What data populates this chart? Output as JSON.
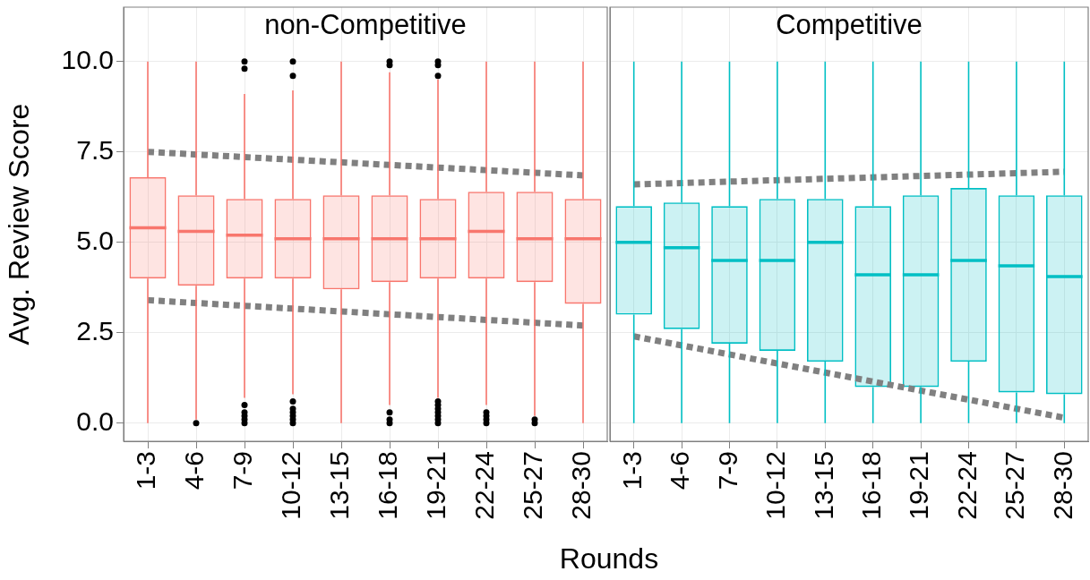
{
  "chart_data": [
    {
      "type": "box",
      "title": "non-Competitive",
      "ylabel": "Avg. Review Score",
      "xlabel": "Rounds",
      "categories": [
        "1-3",
        "4-6",
        "7-9",
        "10-12",
        "13-15",
        "16-18",
        "19-21",
        "22-24",
        "25-27",
        "28-30"
      ],
      "ylim": [
        -0.5,
        11.5
      ],
      "yticks": [
        {
          "value": 0,
          "label": "0.0"
        },
        {
          "value": 2.5,
          "label": "2.5"
        },
        {
          "value": 5,
          "label": "5.0"
        },
        {
          "value": 7.5,
          "label": "7.5"
        },
        {
          "value": 10,
          "label": "10.0"
        }
      ],
      "grid": true,
      "legend": false,
      "series": [
        {
          "type": "box",
          "color": "#f8766d",
          "boxes": [
            {
              "low": 0,
              "q1": 4.0,
              "median": 5.4,
              "q3": 6.8,
              "high": 10
            },
            {
              "low": 0.1,
              "q1": 3.8,
              "median": 5.3,
              "q3": 6.3,
              "high": 10,
              "outliers": [
                0
              ]
            },
            {
              "low": 0.7,
              "q1": 4.0,
              "median": 5.2,
              "q3": 6.2,
              "high": 9.1,
              "outliers": [
                10,
                9.8,
                0.5,
                0.3,
                0.2,
                0.1,
                0
              ]
            },
            {
              "low": 0.8,
              "q1": 4.0,
              "median": 5.1,
              "q3": 6.2,
              "high": 9.2,
              "outliers": [
                10,
                9.6,
                0.6,
                0.4,
                0.3,
                0.2,
                0.1,
                0
              ]
            },
            {
              "low": 0,
              "q1": 3.7,
              "median": 5.1,
              "q3": 6.3,
              "high": 10
            },
            {
              "low": 0.5,
              "q1": 3.9,
              "median": 5.1,
              "q3": 6.3,
              "high": 9.7,
              "outliers": [
                10,
                9.9,
                0.3,
                0.1,
                0
              ]
            },
            {
              "low": 0.7,
              "q1": 4.0,
              "median": 5.1,
              "q3": 6.2,
              "high": 9.5,
              "outliers": [
                10,
                9.9,
                9.6,
                0.6,
                0.5,
                0.4,
                0.3,
                0.2,
                0.1,
                0
              ]
            },
            {
              "low": 0.5,
              "q1": 4.0,
              "median": 5.3,
              "q3": 6.4,
              "high": 10,
              "outliers": [
                0.3,
                0.2,
                0.1,
                0
              ]
            },
            {
              "low": 0.2,
              "q1": 3.9,
              "median": 5.1,
              "q3": 6.4,
              "high": 10,
              "outliers": [
                0.1,
                0
              ]
            },
            {
              "low": 0,
              "q1": 3.3,
              "median": 5.1,
              "q3": 6.2,
              "high": 10
            }
          ]
        },
        {
          "type": "line",
          "x": [
            "1-3",
            "28-30"
          ],
          "values": [
            7.5,
            6.85
          ],
          "color": "#808080",
          "line_style": "dotted"
        },
        {
          "type": "line",
          "x": [
            "1-3",
            "28-30"
          ],
          "values": [
            3.4,
            2.7
          ],
          "color": "#808080",
          "line_style": "dotted"
        }
      ]
    },
    {
      "type": "box",
      "title": "Competitive",
      "categories": [
        "1-3",
        "4-6",
        "7-9",
        "10-12",
        "13-15",
        "16-18",
        "19-21",
        "22-24",
        "25-27",
        "28-30"
      ],
      "ylim": [
        -0.5,
        11.5
      ],
      "yticks": [
        0,
        2.5,
        5,
        7.5,
        10
      ],
      "grid": true,
      "legend": false,
      "tick_labels": "x",
      "series": [
        {
          "type": "box",
          "color": "#00bfc4",
          "boxes": [
            {
              "low": 0,
              "q1": 3.0,
              "median": 5.0,
              "q3": 6.0,
              "high": 10
            },
            {
              "low": 0,
              "q1": 2.6,
              "median": 4.85,
              "q3": 6.1,
              "high": 10
            },
            {
              "low": 0,
              "q1": 2.2,
              "median": 4.5,
              "q3": 6.0,
              "high": 10
            },
            {
              "low": 0,
              "q1": 2.0,
              "median": 4.5,
              "q3": 6.2,
              "high": 10
            },
            {
              "low": 0,
              "q1": 1.7,
              "median": 5.0,
              "q3": 6.2,
              "high": 10
            },
            {
              "low": 0,
              "q1": 1.0,
              "median": 4.1,
              "q3": 6.0,
              "high": 10
            },
            {
              "low": 0,
              "q1": 1.0,
              "median": 4.1,
              "q3": 6.3,
              "high": 10
            },
            {
              "low": 0,
              "q1": 1.7,
              "median": 4.5,
              "q3": 6.5,
              "high": 10
            },
            {
              "low": 0,
              "q1": 0.85,
              "median": 4.35,
              "q3": 6.3,
              "high": 10
            },
            {
              "low": 0,
              "q1": 0.8,
              "median": 4.05,
              "q3": 6.3,
              "high": 10
            }
          ]
        },
        {
          "type": "line",
          "x": [
            "1-3",
            "28-30"
          ],
          "values": [
            6.6,
            6.95
          ],
          "color": "#808080",
          "line_style": "dotted"
        },
        {
          "type": "line",
          "x": [
            "1-3",
            "28-30"
          ],
          "values": [
            2.4,
            0.15
          ],
          "color": "#808080",
          "line_style": "dotted"
        }
      ]
    }
  ]
}
